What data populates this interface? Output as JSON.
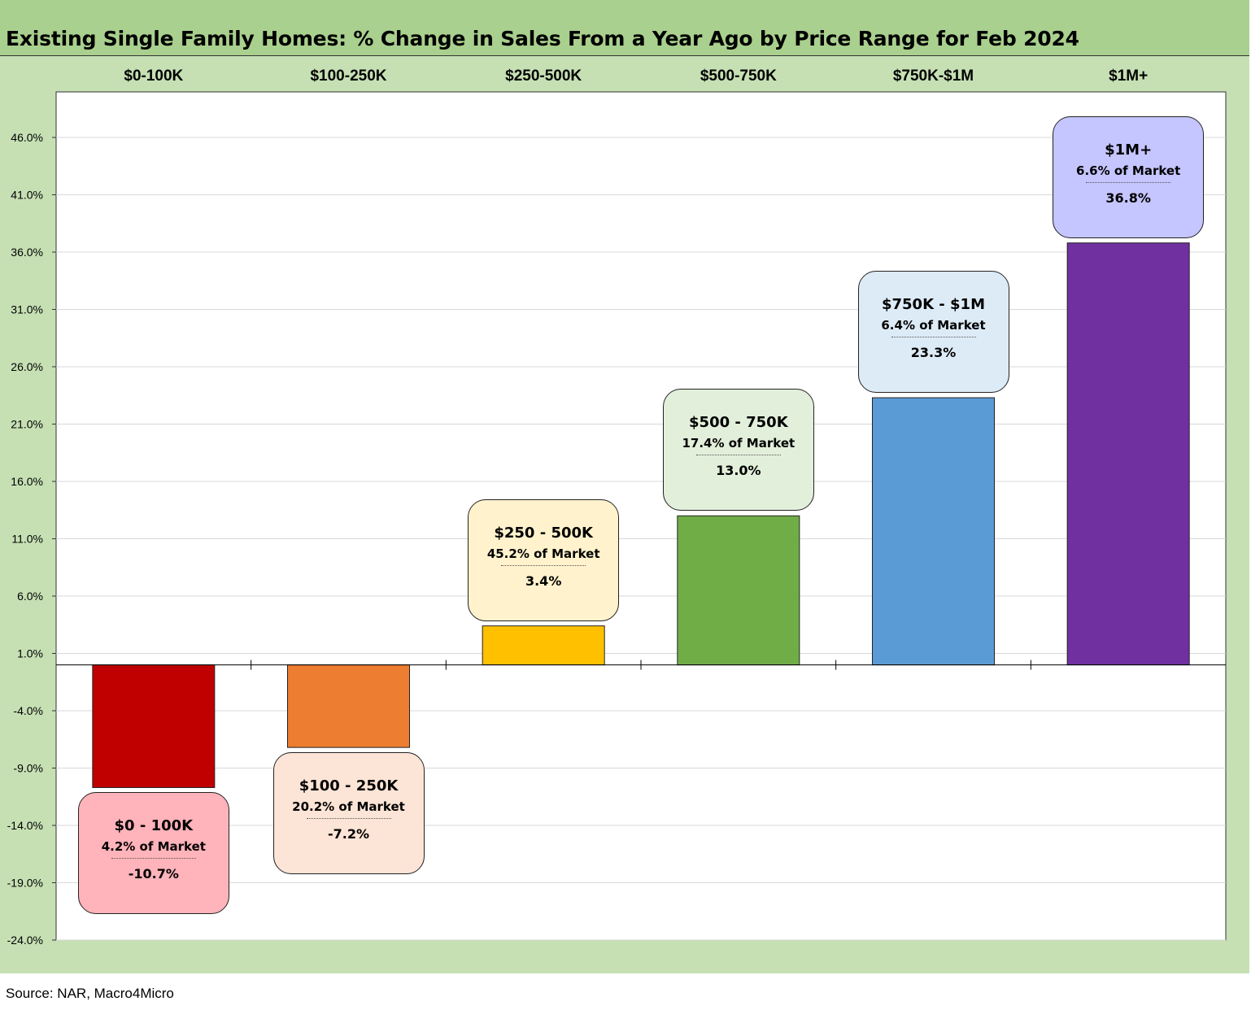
{
  "title": "Existing Single Family Homes: % Change in Sales From a Year Ago by Price Range for Feb 2024",
  "source": "Source:  NAR,  Macro4Micro",
  "chart_data": {
    "type": "bar",
    "title": "Existing Single Family Homes: % Change in Sales From a Year Ago by Price Range for Feb 2024",
    "categories": [
      "$0-100K",
      "$100-250K",
      "$250-500K",
      "$500-750K",
      "$750K-$1M",
      "$1M+"
    ],
    "values": [
      -10.7,
      -7.2,
      3.4,
      13.0,
      23.3,
      36.8
    ],
    "colors": [
      "#c00000",
      "#ed7d31",
      "#ffc000",
      "#70ad47",
      "#5b9bd5",
      "#7030a0"
    ],
    "ylim": [
      -24.0,
      50.0
    ],
    "yticks": [
      "46.0%",
      "41.0%",
      "36.0%",
      "31.0%",
      "26.0%",
      "21.0%",
      "16.0%",
      "11.0%",
      "6.0%",
      "1.0%",
      "-4.0%",
      "-9.0%",
      "-14.0%",
      "-19.0%",
      "-24.0%"
    ],
    "ytick_values": [
      46,
      41,
      36,
      31,
      26,
      21,
      16,
      11,
      6,
      1,
      -4,
      -9,
      -14,
      -19,
      -24
    ],
    "xlabel": "",
    "ylabel": "",
    "grid": true,
    "callouts": [
      {
        "name": "$0 - 100K",
        "share": "4.2% of Market",
        "value": "-10.7%",
        "fill": "#ffb3ba"
      },
      {
        "name": "$100 - 250K",
        "share": "20.2% of Market",
        "value": "-7.2%",
        "fill": "#fce4d6"
      },
      {
        "name": "$250 - 500K",
        "share": "45.2% of Market",
        "value": "3.4%",
        "fill": "#fff2cc"
      },
      {
        "name": "$500 - 750K",
        "share": "17.4% of Market",
        "value": "13.0%",
        "fill": "#e2efda"
      },
      {
        "name": "$750K - $1M",
        "share": "6.4% of Market",
        "value": "23.3%",
        "fill": "#ddebf7"
      },
      {
        "name": "$1M+",
        "share": "6.6% of Market",
        "value": "36.8%",
        "fill": "#c5c5ff"
      }
    ]
  }
}
